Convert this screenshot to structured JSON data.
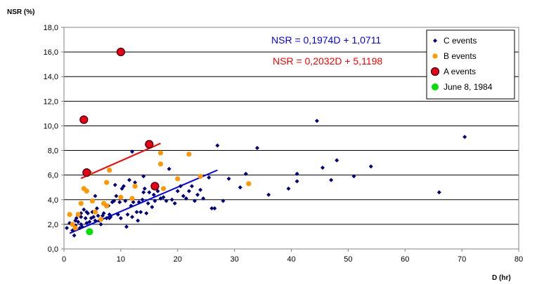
{
  "chart_data": {
    "type": "scatter",
    "ylabel": "NSR (%)",
    "xlabel": "D (hr)",
    "xlim": [
      0,
      80
    ],
    "ylim": [
      0,
      18
    ],
    "xticks": [
      "0",
      "10",
      "20",
      "30",
      "40",
      "50",
      "60",
      "70",
      "80"
    ],
    "yticks": [
      "0,0",
      "2,0",
      "4,0",
      "6,0",
      "8,0",
      "10,0",
      "12,0",
      "14,0",
      "16,0",
      "18,0"
    ],
    "grid": "horizontal",
    "legend_position": "top-right",
    "equations": [
      {
        "text": "NSR = 0,1974D + 1,0711",
        "color": "#0000ff"
      },
      {
        "text": "NSR = 0,2032D + 5,1198",
        "color": "#ff0000"
      }
    ],
    "series": [
      {
        "name": "C events",
        "marker": "diamond",
        "color": "#00007f",
        "points": [
          [
            0.5,
            1.7
          ],
          [
            1,
            2.1
          ],
          [
            1.5,
            1.5
          ],
          [
            1.8,
            1.1
          ],
          [
            2,
            1.9
          ],
          [
            2.2,
            2.5
          ],
          [
            2.5,
            2.2
          ],
          [
            2.8,
            1.7
          ],
          [
            3,
            2.0
          ],
          [
            3.2,
            1.8
          ],
          [
            3.5,
            3.2
          ],
          [
            3.8,
            2.5
          ],
          [
            4,
            2.1
          ],
          [
            4.2,
            2.9
          ],
          [
            4.5,
            2.2
          ],
          [
            4.8,
            2.5
          ],
          [
            5,
            3.0
          ],
          [
            5.2,
            2.6
          ],
          [
            5.5,
            2.3
          ],
          [
            5.8,
            3.3
          ],
          [
            6,
            2.7
          ],
          [
            6.2,
            2.3
          ],
          [
            6.5,
            2.0
          ],
          [
            6.8,
            2.7
          ],
          [
            7,
            2.9
          ],
          [
            7.2,
            3.6
          ],
          [
            7.5,
            2.5
          ],
          [
            7.8,
            3.5
          ],
          [
            8,
            2.8
          ],
          [
            8.2,
            2.6
          ],
          [
            8.5,
            3.8
          ],
          [
            8.8,
            3.9
          ],
          [
            9,
            5.2
          ],
          [
            9.2,
            4.3
          ],
          [
            9.5,
            2.8
          ],
          [
            9.8,
            3.8
          ],
          [
            10,
            2.5
          ],
          [
            10.2,
            4.9
          ],
          [
            10.5,
            5.1
          ],
          [
            10.8,
            3.9
          ],
          [
            11,
            1.8
          ],
          [
            11.2,
            2.8
          ],
          [
            11.5,
            5.6
          ],
          [
            11.8,
            3.5
          ],
          [
            12,
            2.6
          ],
          [
            12.2,
            3.8
          ],
          [
            12.5,
            5.4
          ],
          [
            12.8,
            3.0
          ],
          [
            13,
            2.3
          ],
          [
            13.2,
            3.8
          ],
          [
            13.5,
            3.0
          ],
          [
            13.8,
            4.0
          ],
          [
            14,
            4.6
          ],
          [
            14.2,
            4.9
          ],
          [
            14.5,
            2.9
          ],
          [
            14.8,
            3.7
          ],
          [
            15,
            4.6
          ],
          [
            15.5,
            3.4
          ],
          [
            15.8,
            4.4
          ],
          [
            16,
            3.9
          ],
          [
            16.5,
            4.7
          ],
          [
            17,
            4.1
          ],
          [
            17.5,
            4.2
          ],
          [
            18,
            3.9
          ],
          [
            18.5,
            6.5
          ],
          [
            19,
            4.0
          ],
          [
            19.5,
            3.7
          ],
          [
            20,
            4.7
          ],
          [
            20.5,
            5.1
          ],
          [
            21,
            4.3
          ],
          [
            21.5,
            4.1
          ],
          [
            22,
            4.7
          ],
          [
            22.5,
            5.1
          ],
          [
            23,
            3.9
          ],
          [
            23.5,
            4.4
          ],
          [
            24,
            4.8
          ],
          [
            24.5,
            4.1
          ],
          [
            25.5,
            5.8
          ],
          [
            26,
            3.3
          ],
          [
            26.5,
            3.3
          ],
          [
            27,
            8.4
          ],
          [
            28,
            3.9
          ],
          [
            29,
            5.7
          ],
          [
            31,
            5.0
          ],
          [
            32,
            6.1
          ],
          [
            34,
            8.2
          ],
          [
            36,
            4.4
          ],
          [
            39.5,
            4.9
          ],
          [
            41,
            6.1
          ],
          [
            41,
            5.5
          ],
          [
            44.5,
            10.4
          ],
          [
            45.5,
            6.6
          ],
          [
            47,
            5.6
          ],
          [
            48,
            7.2
          ],
          [
            51,
            5.9
          ],
          [
            54,
            6.7
          ],
          [
            66,
            4.6
          ],
          [
            70.5,
            9.1
          ],
          [
            12,
            7.9
          ],
          [
            3,
            2.9
          ],
          [
            5.5,
            4.3
          ],
          [
            8,
            2.5
          ],
          [
            14,
            5.9
          ],
          [
            3,
            2.6
          ],
          [
            4,
            3.0
          ],
          [
            2,
            2.3
          ]
        ]
      },
      {
        "name": "B events",
        "marker": "circle",
        "color": "#ff9900",
        "points": [
          [
            1,
            2.8
          ],
          [
            1.5,
            2.0
          ],
          [
            2,
            1.7
          ],
          [
            2.5,
            2.8
          ],
          [
            3,
            3.7
          ],
          [
            3.5,
            4.9
          ],
          [
            4,
            4.7
          ],
          [
            4.5,
            6.2
          ],
          [
            5,
            3.9
          ],
          [
            5.5,
            3.0
          ],
          [
            6.5,
            2.4
          ],
          [
            7,
            3.7
          ],
          [
            7.5,
            5.4
          ],
          [
            8,
            6.4
          ],
          [
            10,
            4.2
          ],
          [
            12,
            4.1
          ],
          [
            12.5,
            5.1
          ],
          [
            17,
            7.8
          ],
          [
            17,
            6.9
          ],
          [
            17.5,
            4.9
          ],
          [
            20,
            5.7
          ],
          [
            22,
            7.7
          ],
          [
            24,
            5.9
          ],
          [
            32.5,
            5.3
          ],
          [
            7.5,
            3.5
          ]
        ]
      },
      {
        "name": "A events",
        "marker": "circle",
        "color": "#e8001a",
        "points": [
          [
            10,
            16.0
          ],
          [
            3.5,
            10.5
          ],
          [
            15,
            8.5
          ],
          [
            4,
            6.2
          ],
          [
            16,
            5.1
          ]
        ]
      },
      {
        "name": "June 8, 1984",
        "marker": "circle",
        "color": "#00e000",
        "points": [
          [
            4.5,
            1.4
          ]
        ]
      }
    ],
    "trendlines": [
      {
        "color": "#0000ff",
        "slope": 0.1974,
        "intercept": 1.0711,
        "x_range": [
          1,
          27
        ]
      },
      {
        "color": "#ff0000",
        "slope": 0.2032,
        "intercept": 5.1198,
        "x_range": [
          3,
          17
        ]
      }
    ]
  }
}
